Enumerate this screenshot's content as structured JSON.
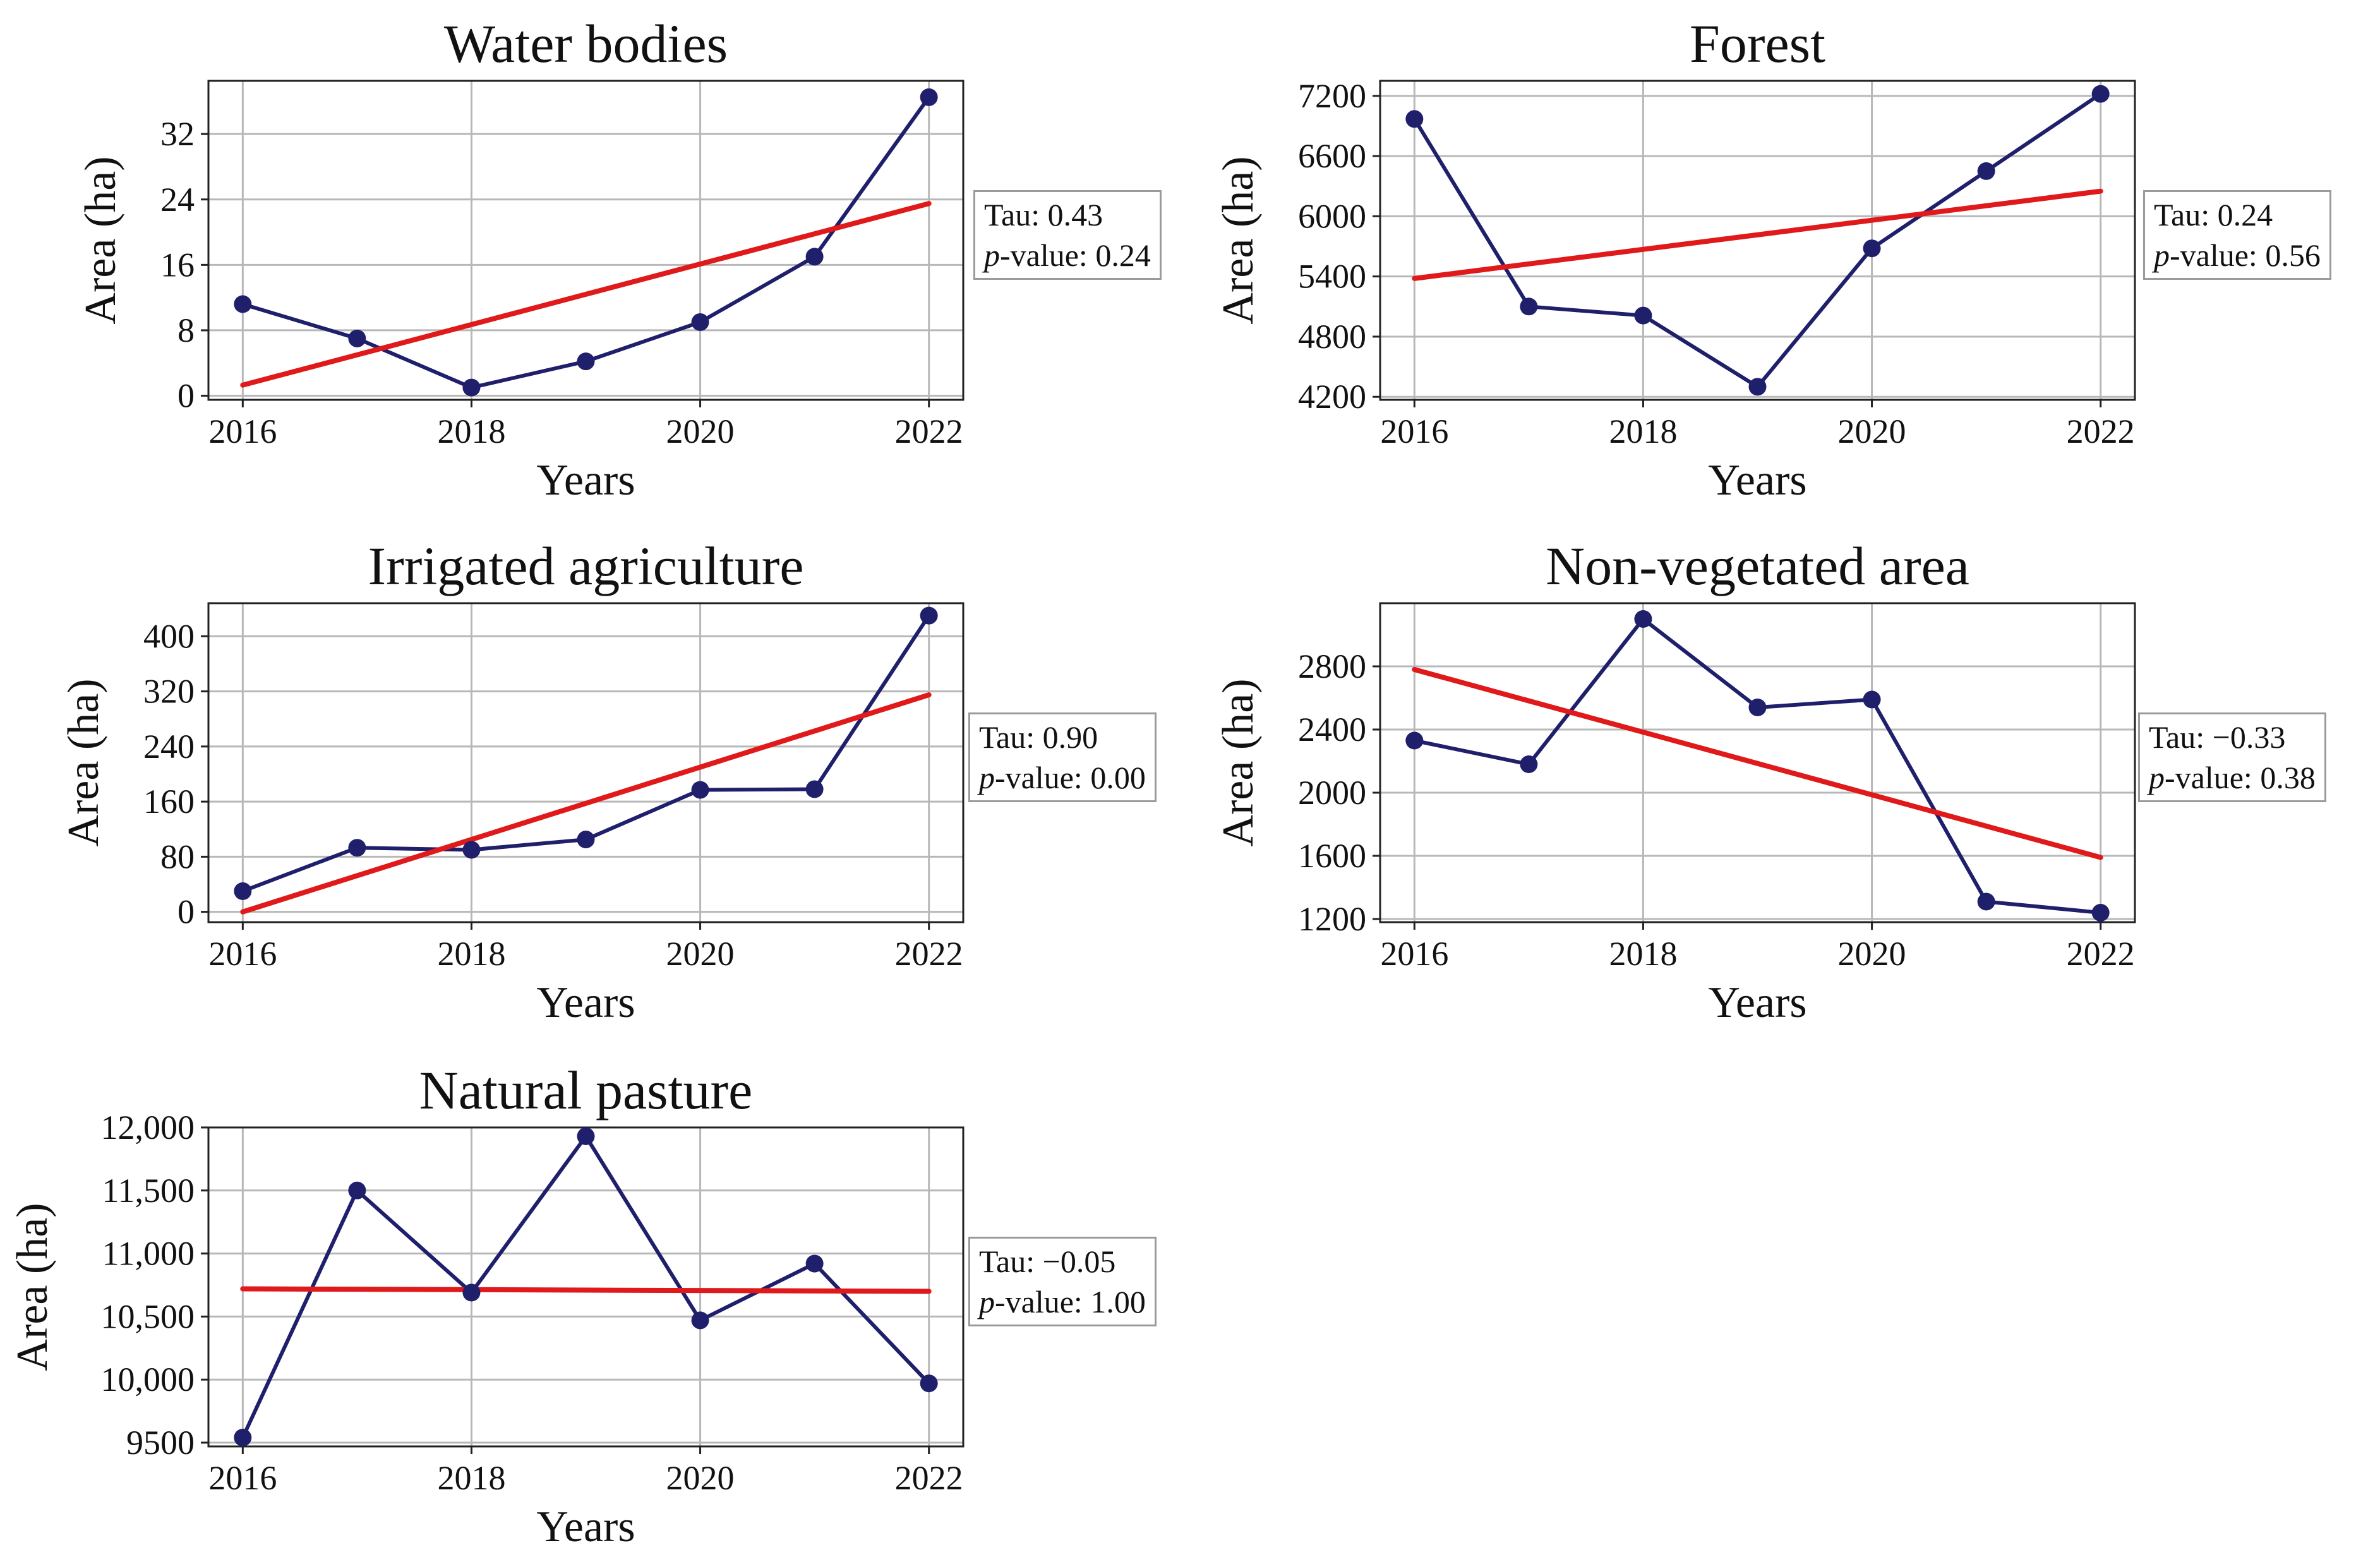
{
  "colors": {
    "series": "#1f1f6b",
    "trend": "#e0191b",
    "grid": "#b8b8b8",
    "axes": "#222222",
    "box_border": "#9a9a9a"
  },
  "common": {
    "xlabel": "Years",
    "ylabel": "Area (ha)",
    "p_label": "p",
    "p_suffix": "-value: "
  },
  "chart_data": [
    {
      "type": "line",
      "title": "Water bodies",
      "xlabel": "Years",
      "ylabel": "Area (ha)",
      "x": [
        2016,
        2017,
        2018,
        2019,
        2020,
        2021,
        2022
      ],
      "values": [
        11.2,
        7.0,
        1.0,
        4.2,
        9.0,
        17.0,
        36.5
      ],
      "trend": [
        1.3,
        23.5
      ],
      "xlim": [
        2015.7,
        2022.3
      ],
      "ylim": [
        -0.5,
        38.5
      ],
      "xticks": [
        2016,
        2018,
        2020,
        2022
      ],
      "xtick_labels": [
        "2016",
        "2018",
        "2020",
        "2022"
      ],
      "yticks": [
        0,
        8,
        16,
        24,
        32
      ],
      "ytick_labels": [
        "0",
        "8",
        "16",
        "24",
        "32"
      ],
      "grid": true,
      "tau": "Tau: 0.43",
      "p_value": "0.24"
    },
    {
      "type": "line",
      "title": "Forest",
      "xlabel": "Years",
      "ylabel": "Area (ha)",
      "x": [
        2016,
        2017,
        2018,
        2019,
        2020,
        2021,
        2022
      ],
      "values": [
        6970,
        5100,
        5010,
        4300,
        5680,
        6450,
        7220
      ],
      "trend": [
        5380,
        6250
      ],
      "xlim": [
        2015.7,
        2022.3
      ],
      "ylim": [
        4170,
        7350
      ],
      "xticks": [
        2016,
        2018,
        2020,
        2022
      ],
      "xtick_labels": [
        "2016",
        "2018",
        "2020",
        "2022"
      ],
      "yticks": [
        4200,
        4800,
        5400,
        6000,
        6600,
        7200
      ],
      "ytick_labels": [
        "4200",
        "4800",
        "5400",
        "6000",
        "6600",
        "7200"
      ],
      "grid": true,
      "tau": "Tau: 0.24",
      "p_value": "0.56"
    },
    {
      "type": "line",
      "title": "Irrigated agriculture",
      "xlabel": "Years",
      "ylabel": "Area (ha)",
      "x": [
        2016,
        2017,
        2018,
        2019,
        2020,
        2021,
        2022
      ],
      "values": [
        30,
        93,
        90,
        105,
        177,
        178,
        430
      ],
      "trend": [
        0,
        315
      ],
      "xlim": [
        2015.7,
        2022.3
      ],
      "ylim": [
        -15,
        448
      ],
      "xticks": [
        2016,
        2018,
        2020,
        2022
      ],
      "xtick_labels": [
        "2016",
        "2018",
        "2020",
        "2022"
      ],
      "yticks": [
        0,
        80,
        160,
        240,
        320,
        400
      ],
      "ytick_labels": [
        "0",
        "80",
        "160",
        "240",
        "320",
        "400"
      ],
      "grid": true,
      "tau": "Tau: 0.90",
      "p_value": "0.00"
    },
    {
      "type": "line",
      "title": "Non-vegetated area",
      "xlabel": "Years",
      "ylabel": "Area (ha)",
      "x": [
        2016,
        2017,
        2018,
        2019,
        2020,
        2021,
        2022
      ],
      "values": [
        2330,
        2180,
        3100,
        2540,
        2590,
        1310,
        1240
      ],
      "trend": [
        2780,
        1590
      ],
      "xlim": [
        2015.7,
        2022.3
      ],
      "ylim": [
        1180,
        3200
      ],
      "xticks": [
        2016,
        2018,
        2020,
        2022
      ],
      "xtick_labels": [
        "2016",
        "2018",
        "2020",
        "2022"
      ],
      "yticks": [
        1200,
        1600,
        2000,
        2400,
        2800
      ],
      "ytick_labels": [
        "1200",
        "1600",
        "2000",
        "2400",
        "2800"
      ],
      "grid": true,
      "tau": "Tau: −0.33",
      "p_value": "0.38"
    },
    {
      "type": "line",
      "title": "Natural pasture",
      "xlabel": "Years",
      "ylabel": "Area (ha)",
      "x": [
        2016,
        2017,
        2018,
        2019,
        2020,
        2021,
        2022
      ],
      "values": [
        9540,
        11500,
        10690,
        11930,
        10470,
        10920,
        9970
      ],
      "trend": [
        10720,
        10700
      ],
      "xlim": [
        2015.7,
        2022.3
      ],
      "ylim": [
        9470,
        12000
      ],
      "xticks": [
        2016,
        2018,
        2020,
        2022
      ],
      "xtick_labels": [
        "2016",
        "2018",
        "2020",
        "2022"
      ],
      "yticks": [
        9500,
        10000,
        10500,
        11000,
        11500,
        12000
      ],
      "ytick_labels": [
        "9500",
        "10,000",
        "10,500",
        "11,000",
        "11,500",
        "12,000"
      ],
      "grid": true,
      "tau": "Tau: −0.05",
      "p_value": "1.00"
    }
  ]
}
